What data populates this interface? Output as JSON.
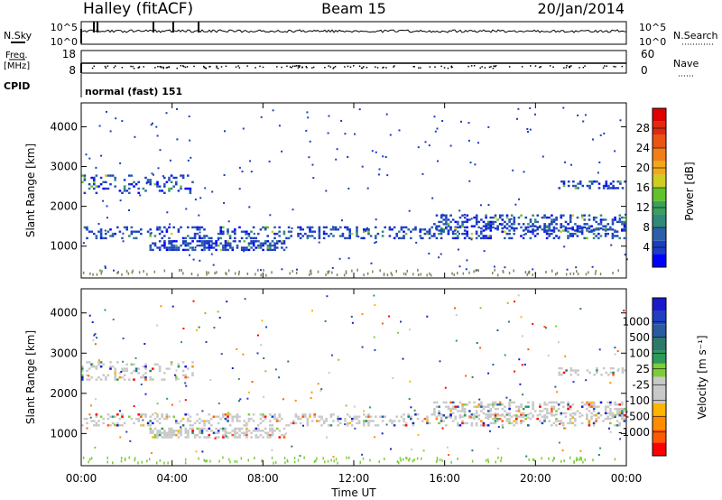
{
  "header": {
    "station": "Halley (fitACF)",
    "beam": "Beam 15",
    "date": "20/Jan/2014"
  },
  "nsky_panel": {
    "left_label": "N.Sky",
    "right_label": "N.Search",
    "left_ticks": [
      "10^5",
      "10^0"
    ],
    "right_ticks": [
      "10^5",
      "10^0"
    ]
  },
  "freq_panel": {
    "left_label_top": "Freq.",
    "left_label_bottom": "[MHz]",
    "right_label": "Nave",
    "left_ticks": [
      "18",
      "8"
    ],
    "right_ticks": [
      "60",
      "0"
    ]
  },
  "cpid": {
    "label": "CPID",
    "value": "normal (fast) 151"
  },
  "colors": {
    "power_scale": [
      "#0000ff",
      "#1a3ec0",
      "#2c5faa",
      "#2f8a78",
      "#3aa05a",
      "#62c22c",
      "#cfcc22",
      "#f1a81a",
      "#f07f18",
      "#ea5512",
      "#df2a10",
      "#e00000"
    ],
    "velocity_scale": [
      "#ff0000",
      "#ff5a00",
      "#ff8c00",
      "#ffb400",
      "#c8c8c8",
      "#c8c8c8",
      "#7dcd3a",
      "#2e9a5a",
      "#2d7a6a",
      "#2a5aa0",
      "#1f3fc0",
      "#1a1acc"
    ]
  },
  "chart_data": [
    {
      "type": "heatmap",
      "panel": "power",
      "ylabel": "Slant Range [km]",
      "yticks": [
        "1000",
        "2000",
        "3000",
        "4000"
      ],
      "ylim": [
        200,
        4600
      ],
      "colorbar_label": "Power [dB]",
      "colorbar_ticks": [
        "4",
        "8",
        "12",
        "16",
        "20",
        "24",
        "28"
      ],
      "colorbar_range": [
        0,
        32
      ],
      "bands": [
        {
          "t0": 0.0,
          "t1": 24.0,
          "r0": 1150,
          "r1": 1500,
          "density": 0.3
        },
        {
          "t0": 3.0,
          "t1": 9.0,
          "r0": 900,
          "r1": 1150,
          "density": 0.55
        },
        {
          "t0": 0.0,
          "t1": 5.0,
          "r0": 2300,
          "r1": 2800,
          "density": 0.25
        },
        {
          "t0": 15.5,
          "t1": 24.0,
          "r0": 1350,
          "r1": 1800,
          "density": 0.35
        },
        {
          "t0": 21.0,
          "t1": 24.0,
          "r0": 2450,
          "r1": 2650,
          "density": 0.3
        }
      ]
    },
    {
      "type": "heatmap",
      "panel": "velocity",
      "ylabel": "Slant Range [km]",
      "yticks": [
        "1000",
        "2000",
        "3000",
        "4000"
      ],
      "ylim": [
        200,
        4600
      ],
      "xlabel": "Time UT",
      "xticks": [
        "00:00",
        "04:00",
        "08:00",
        "12:00",
        "16:00",
        "20:00",
        "00:00"
      ],
      "xlim": [
        0,
        24
      ],
      "colorbar_label": "Velocity [m s⁻¹]",
      "colorbar_ticks": [
        "1000",
        "500",
        "100",
        "25",
        "-25",
        "-100",
        "-500",
        "-1000"
      ],
      "bands": [
        {
          "t0": 0.0,
          "t1": 24.0,
          "r0": 1200,
          "r1": 1500,
          "density": 0.3
        },
        {
          "t0": 3.0,
          "t1": 9.0,
          "r0": 900,
          "r1": 1150,
          "density": 0.5
        },
        {
          "t0": 0.0,
          "t1": 5.0,
          "r0": 2300,
          "r1": 2800,
          "density": 0.25
        },
        {
          "t0": 15.5,
          "t1": 24.0,
          "r0": 1350,
          "r1": 1800,
          "density": 0.35
        },
        {
          "t0": 21.0,
          "t1": 24.0,
          "r0": 2450,
          "r1": 2650,
          "density": 0.3
        }
      ]
    }
  ]
}
